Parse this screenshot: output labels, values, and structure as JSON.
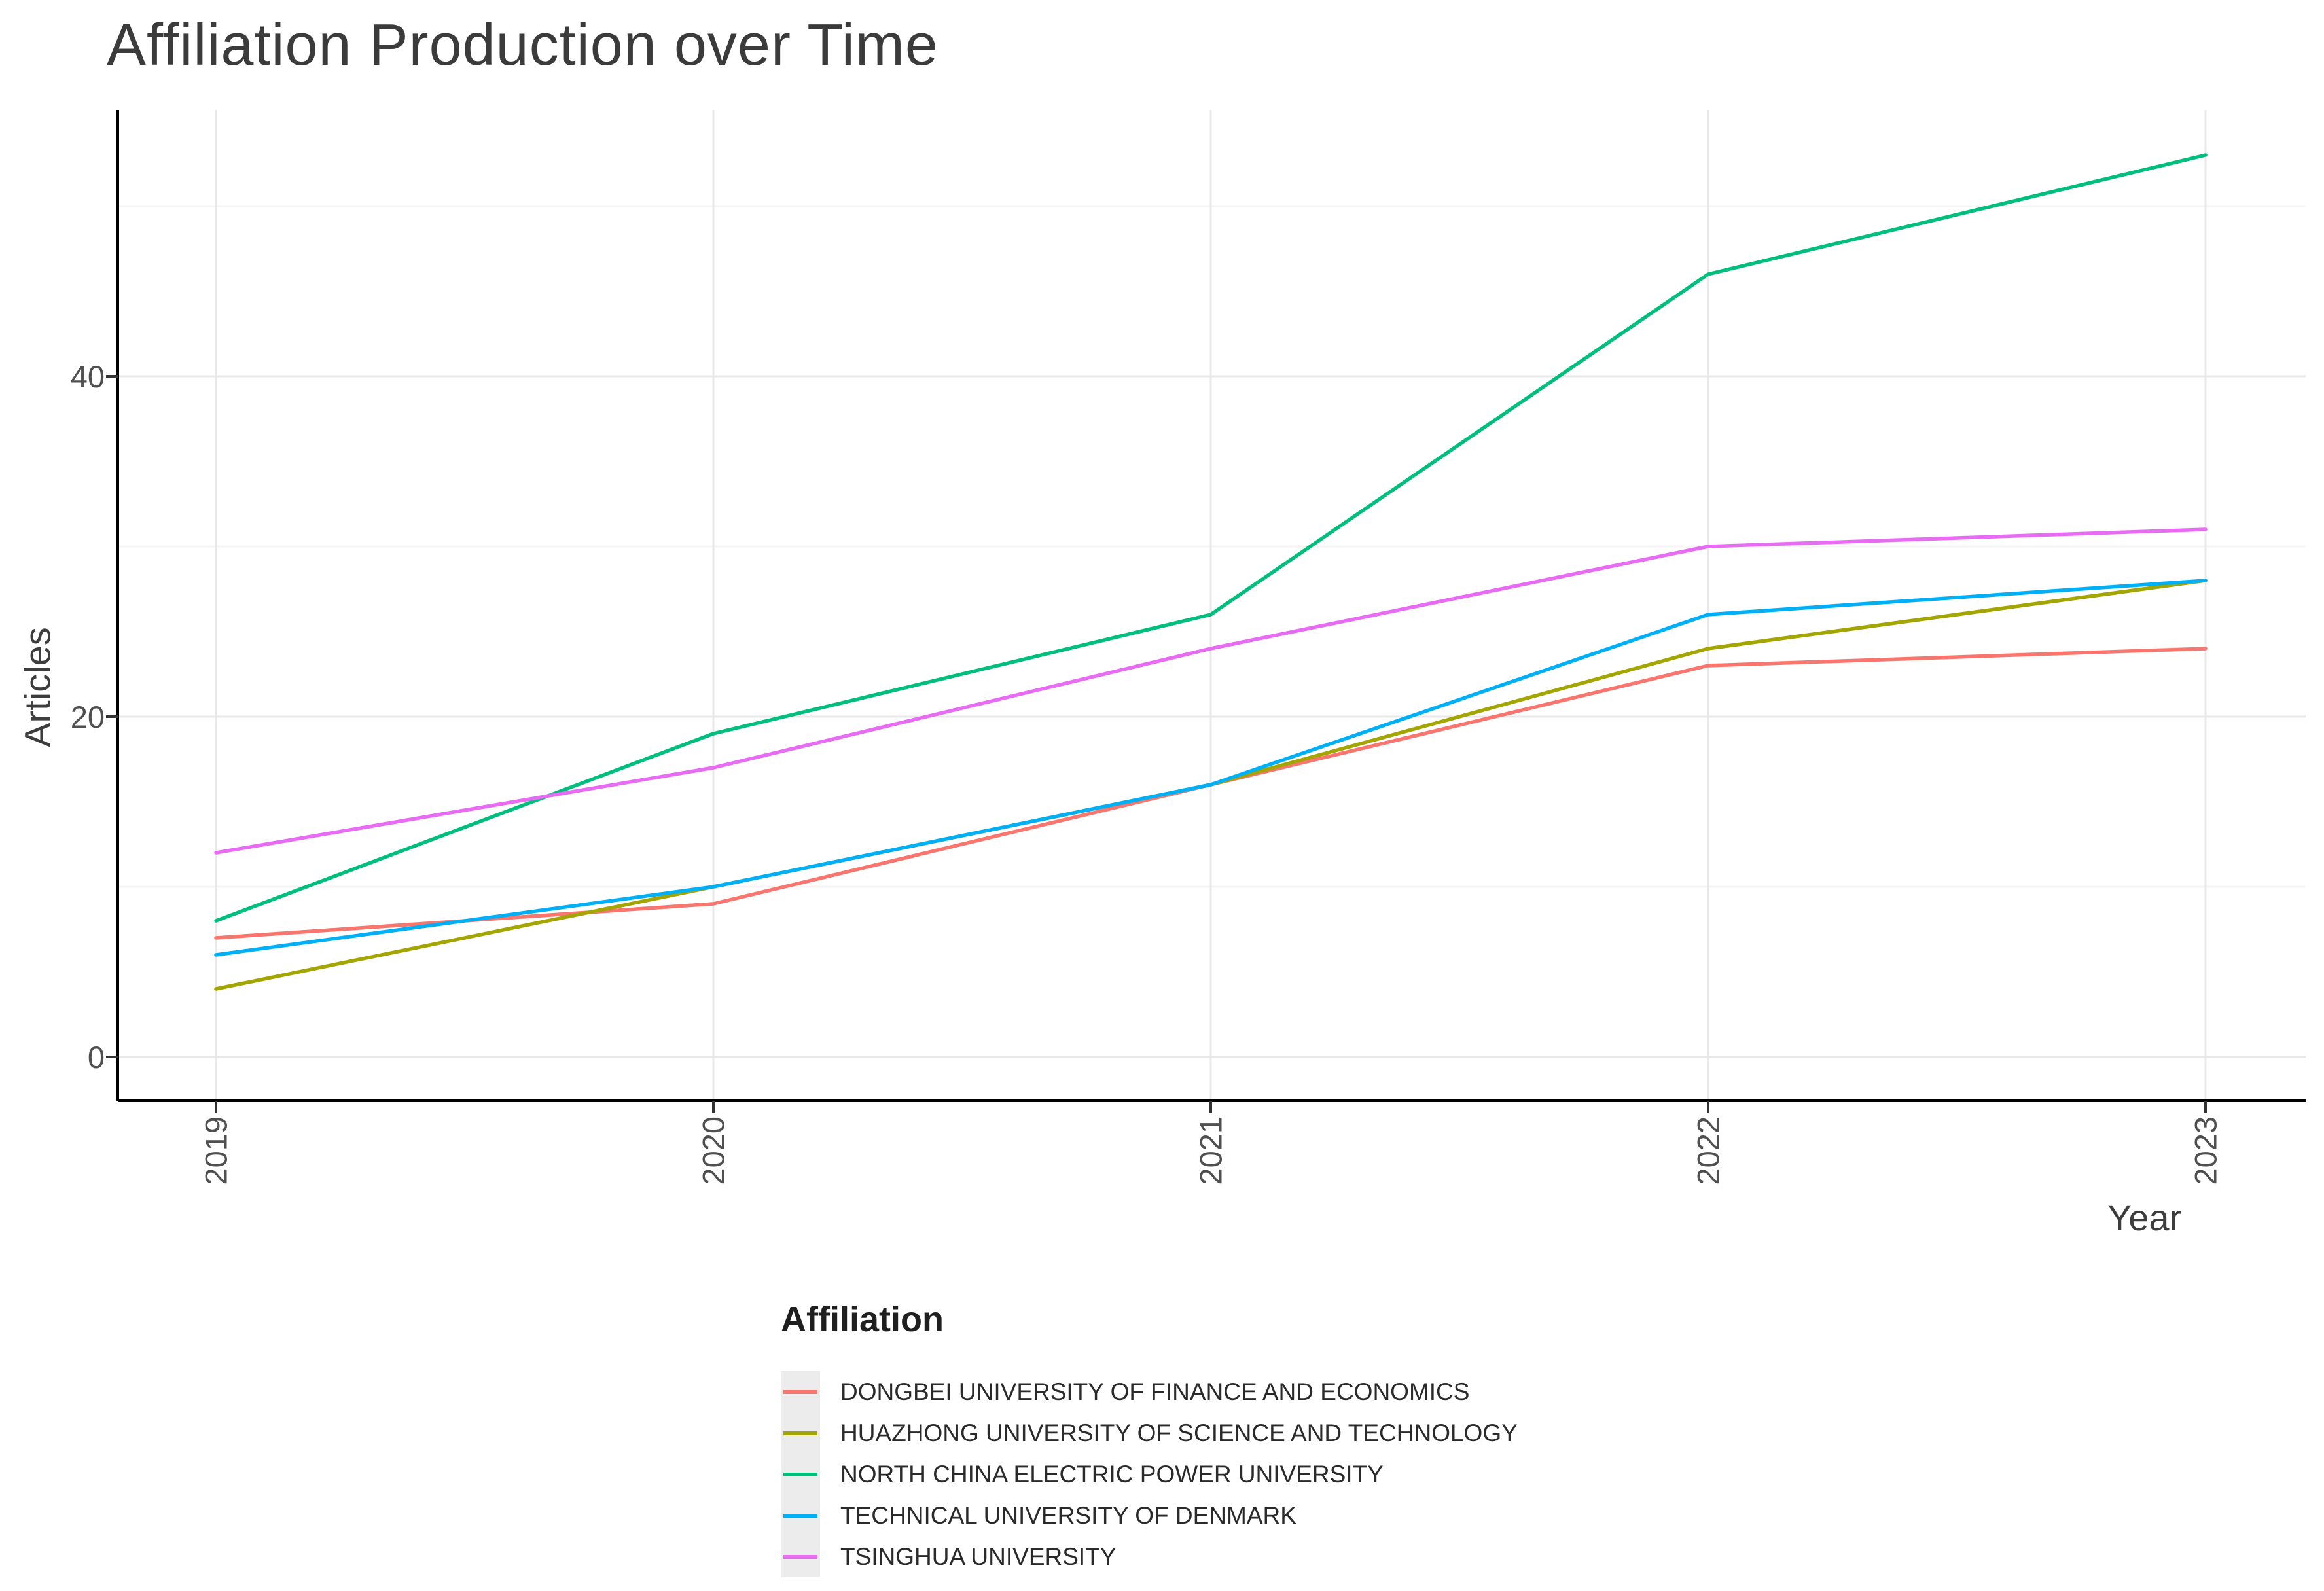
{
  "title": "Affiliation Production over Time",
  "axes": {
    "x_label": "Year",
    "y_label": "Articles",
    "x_tick_labels": [
      "2019",
      "2020",
      "2021",
      "2022",
      "2023"
    ],
    "y_tick_labels": [
      "0",
      "20",
      "40"
    ]
  },
  "legend": {
    "title": "Affiliation"
  },
  "chart_data": {
    "type": "line",
    "title": "Affiliation Production over Time",
    "xlabel": "Year",
    "ylabel": "Articles",
    "x": [
      2019,
      2020,
      2021,
      2022,
      2023
    ],
    "series": [
      {
        "name": "DONGBEI UNIVERSITY OF FINANCE AND ECONOMICS",
        "color": "#F8766D",
        "values": [
          7,
          9,
          16,
          23,
          24
        ]
      },
      {
        "name": "HUAZHONG UNIVERSITY OF SCIENCE AND TECHNOLOGY",
        "color": "#A3A500",
        "values": [
          4,
          10,
          16,
          24,
          28
        ]
      },
      {
        "name": "NORTH CHINA ELECTRIC POWER UNIVERSITY",
        "color": "#00BF7D",
        "values": [
          8,
          19,
          26,
          46,
          53
        ]
      },
      {
        "name": "TECHNICAL UNIVERSITY OF DENMARK",
        "color": "#00B0F6",
        "values": [
          6,
          10,
          16,
          26,
          28
        ]
      },
      {
        "name": "TSINGHUA UNIVERSITY",
        "color": "#E76BF3",
        "values": [
          12,
          17,
          24,
          30,
          31
        ]
      }
    ],
    "ylim": [
      0,
      55
    ],
    "y_major_ticks": [
      0,
      20,
      40
    ],
    "y_minor_ticks": [
      10,
      30,
      50
    ],
    "grid": true,
    "legend_position": "bottom",
    "legend_title": "Affiliation"
  },
  "style": {
    "grid_major_color": "#e8e8e8",
    "grid_minor_color": "#f4f4f4",
    "axis_line_color": "#000000",
    "tick_mark_color": "#333333"
  }
}
